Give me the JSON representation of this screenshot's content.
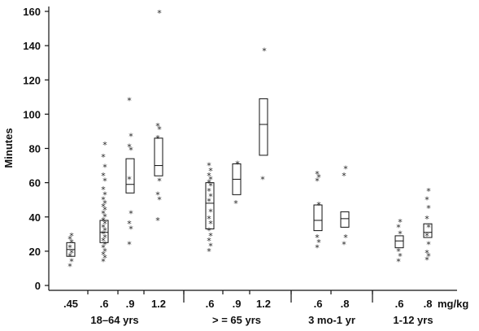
{
  "chart_data": {
    "type": "box",
    "ylabel": "Minutes",
    "unit_label": "mg/kg",
    "ylim": [
      0,
      160
    ],
    "yticks": [
      "0",
      "20",
      "40",
      "60",
      "80",
      "100",
      "120",
      "140",
      "160"
    ],
    "groups": [
      {
        "label": "18–64 yrs",
        "categories": [
          ".45",
          ".6",
          ".9",
          "1.2"
        ]
      },
      {
        "label": "> = 65 yrs",
        "categories": [
          ".6",
          ".9",
          "1.2"
        ]
      },
      {
        "label": "3 mo-1 yr",
        "categories": [
          ".6",
          ".8"
        ]
      },
      {
        "label": "1-12 yrs",
        "categories": [
          ".6",
          ".8"
        ]
      }
    ],
    "boxes": [
      {
        "group": "18–64 yrs",
        "category": ".45",
        "q1": 17,
        "median": 21,
        "q3": 25,
        "outliers": [
          12,
          15,
          18,
          20,
          23,
          26,
          28,
          30
        ]
      },
      {
        "group": "18–64 yrs",
        "category": ".6",
        "q1": 25,
        "median": 31,
        "q3": 38,
        "outliers": [
          15,
          17,
          19,
          21,
          23,
          25,
          27,
          29,
          31,
          33,
          35,
          37,
          39,
          41,
          43,
          45,
          47,
          49,
          51,
          54,
          57,
          62,
          65,
          70,
          76,
          83
        ]
      },
      {
        "group": "18–64 yrs",
        "category": ".9",
        "q1": 54,
        "median": 59,
        "q3": 74,
        "outliers": [
          25,
          34,
          37,
          43,
          63,
          80,
          82,
          88,
          109
        ]
      },
      {
        "group": "18–64 yrs",
        "category": "1.2",
        "q1": 64,
        "median": 70,
        "q3": 86,
        "outliers": [
          39,
          51,
          54,
          62,
          87,
          92,
          94,
          160
        ]
      },
      {
        "group": "> = 65 yrs",
        "category": ".6",
        "q1": 33,
        "median": 48,
        "q3": 60,
        "outliers": [
          21,
          24,
          27,
          30,
          33,
          37,
          40,
          44,
          50,
          53,
          56,
          59,
          61,
          63,
          65,
          68,
          71
        ]
      },
      {
        "group": "> = 65 yrs",
        "category": ".9",
        "q1": 53,
        "median": 62,
        "q3": 71,
        "outliers": [
          49,
          72
        ]
      },
      {
        "group": "> = 65 yrs",
        "category": "1.2",
        "q1": 76,
        "median": 94,
        "q3": 109,
        "outliers": [
          63,
          138
        ]
      },
      {
        "group": "3 mo-1 yr",
        "category": ".6",
        "q1": 32,
        "median": 38,
        "q3": 47,
        "outliers": [
          23,
          26,
          29,
          48,
          62,
          64,
          66
        ]
      },
      {
        "group": "3 mo-1 yr",
        "category": ".8",
        "q1": 34,
        "median": 39,
        "q3": 43,
        "outliers": [
          25,
          29,
          65,
          69
        ]
      },
      {
        "group": "1-12 yrs",
        "category": ".6",
        "q1": 22,
        "median": 26,
        "q3": 29,
        "outliers": [
          15,
          18,
          21,
          31,
          35,
          38
        ]
      },
      {
        "group": "1-12 yrs",
        "category": ".8",
        "q1": 28,
        "median": 31,
        "q3": 36,
        "outliers": [
          16,
          18,
          20,
          25,
          30,
          35,
          40,
          46,
          51,
          56
        ]
      }
    ]
  }
}
